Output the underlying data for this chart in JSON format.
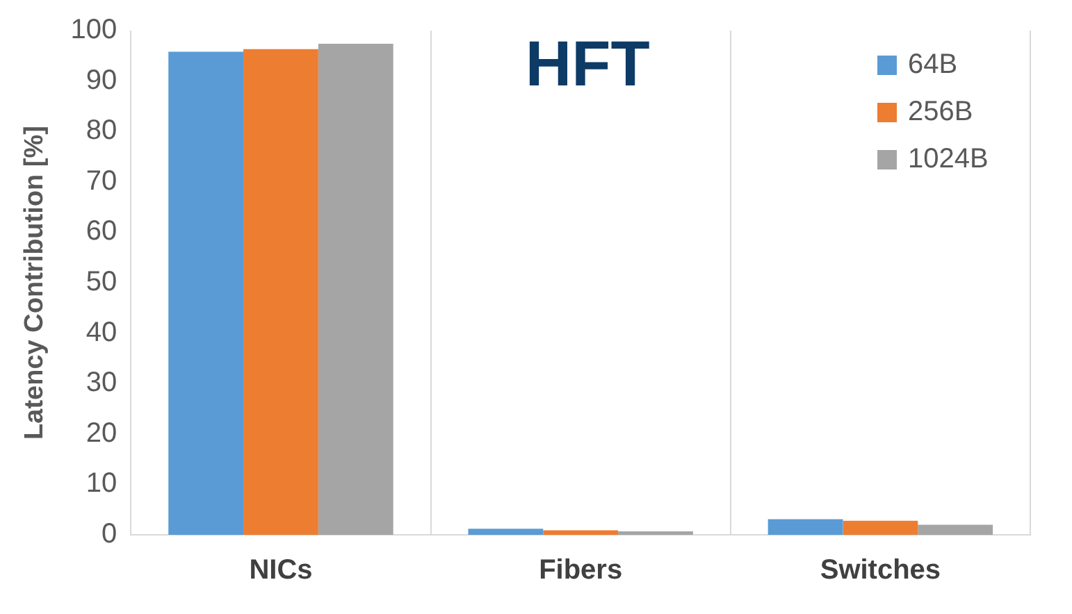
{
  "chart_data": {
    "type": "bar",
    "title": "HFT",
    "ylabel": "Latency Contribution [%]",
    "categories": [
      "NICs",
      "Fibers",
      "Switches"
    ],
    "series": [
      {
        "name": "64B",
        "color": "#5b9bd5",
        "values": [
          95.8,
          1.2,
          3.1
        ]
      },
      {
        "name": "256B",
        "color": "#ed7d31",
        "values": [
          96.3,
          0.9,
          2.8
        ]
      },
      {
        "name": "1024B",
        "color": "#a5a5a5",
        "values": [
          97.4,
          0.7,
          2.0
        ]
      }
    ],
    "ylim": [
      0,
      100
    ],
    "yticks": [
      0,
      10,
      20,
      30,
      40,
      50,
      60,
      70,
      80,
      90,
      100
    ],
    "grid": "x",
    "legend": "top right"
  }
}
